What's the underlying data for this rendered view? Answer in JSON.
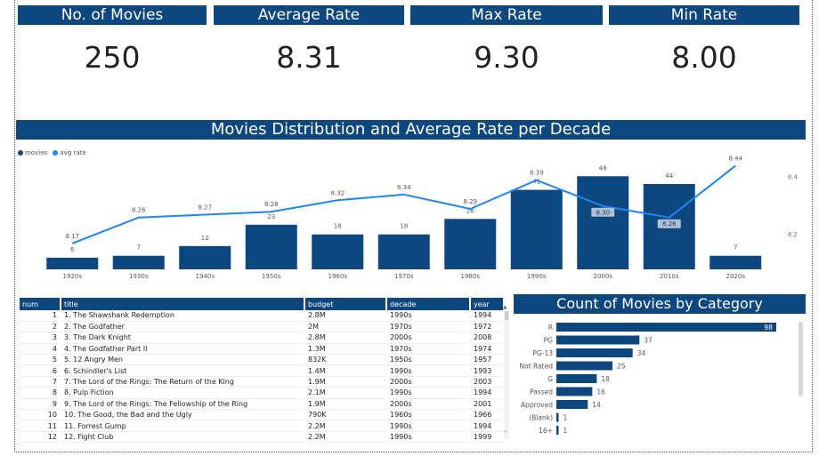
{
  "kpis": [
    {
      "label": "No. of Movies",
      "value": "250"
    },
    {
      "label": "Average Rate",
      "value": "8.31"
    },
    {
      "label": "Max Rate",
      "value": "9.30"
    },
    {
      "label": "Min Rate",
      "value": "8.00"
    }
  ],
  "colors": {
    "header": "#0d4780",
    "bar": "#0d4780",
    "line": "#1f85f0",
    "rate_label_bg": "#aebfd6"
  },
  "chart_data": [
    {
      "type": "bar",
      "title": "Movies Distribution and Average Rate per Decade",
      "legend": [
        "movies",
        "avg rate"
      ],
      "legend_position": "top-left",
      "categories": [
        "1920s",
        "1930s",
        "1940s",
        "1950s",
        "1960s",
        "1970s",
        "1980s",
        "1990s",
        "2000s",
        "2010s",
        "2020s"
      ],
      "series": [
        {
          "name": "movies",
          "type": "bar",
          "values": [
            6,
            7,
            12,
            23,
            18,
            18,
            26,
            41,
            48,
            44,
            7
          ]
        },
        {
          "name": "avg rate",
          "type": "line",
          "values": [
            8.17,
            8.26,
            8.27,
            8.28,
            8.32,
            8.34,
            8.29,
            8.39,
            8.3,
            8.26,
            8.44
          ]
        }
      ],
      "secondary_axis": {
        "ticks": [
          "8.4",
          "8.2"
        ],
        "range": [
          8.12,
          8.46
        ]
      },
      "ylim": [
        0,
        55
      ],
      "grid": false
    },
    {
      "type": "bar",
      "orientation": "horizontal",
      "title": "Count of Movies by Category",
      "categories": [
        "R",
        "PG",
        "PG-13",
        "Not Rated",
        "G",
        "Passed",
        "Approved",
        "(Blank)",
        "16+"
      ],
      "values": [
        98,
        37,
        34,
        25,
        18,
        16,
        14,
        1,
        1
      ],
      "xlim": [
        0,
        100
      ]
    }
  ],
  "table": {
    "columns": [
      "num",
      "title",
      "budget",
      "decade",
      "year"
    ],
    "rows": [
      [
        "1",
        "1. The Shawshank Redemption",
        "2.8M",
        "1990s",
        "1994"
      ],
      [
        "2",
        "2. The Godfather",
        "2M",
        "1970s",
        "1972"
      ],
      [
        "3",
        "3. The Dark Knight",
        "2.8M",
        "2000s",
        "2008"
      ],
      [
        "4",
        "4. The Godfather Part II",
        "1.3M",
        "1970s",
        "1974"
      ],
      [
        "5",
        "5. 12 Angry Men",
        "832K",
        "1950s",
        "1957"
      ],
      [
        "6",
        "6. Schindler's List",
        "1.4M",
        "1990s",
        "1993"
      ],
      [
        "7",
        "7. The Lord of the Rings: The Return of the King",
        "1.9M",
        "2000s",
        "2003"
      ],
      [
        "8",
        "8. Pulp Fiction",
        "2.1M",
        "1990s",
        "1994"
      ],
      [
        "9",
        "9. The Lord of the Rings: The Fellowship of the Ring",
        "1.9M",
        "2000s",
        "2001"
      ],
      [
        "10",
        "10. The Good, the Bad and the Ugly",
        "790K",
        "1960s",
        "1966"
      ],
      [
        "11",
        "11. Forrest Gump",
        "2.2M",
        "1990s",
        "1994"
      ],
      [
        "12",
        "12. Fight Club",
        "2.2M",
        "1990s",
        "1999"
      ]
    ]
  },
  "icons": {
    "scroll_up": "scroll-up-arrow-icon",
    "scroll_down": "scroll-down-arrow-icon"
  }
}
